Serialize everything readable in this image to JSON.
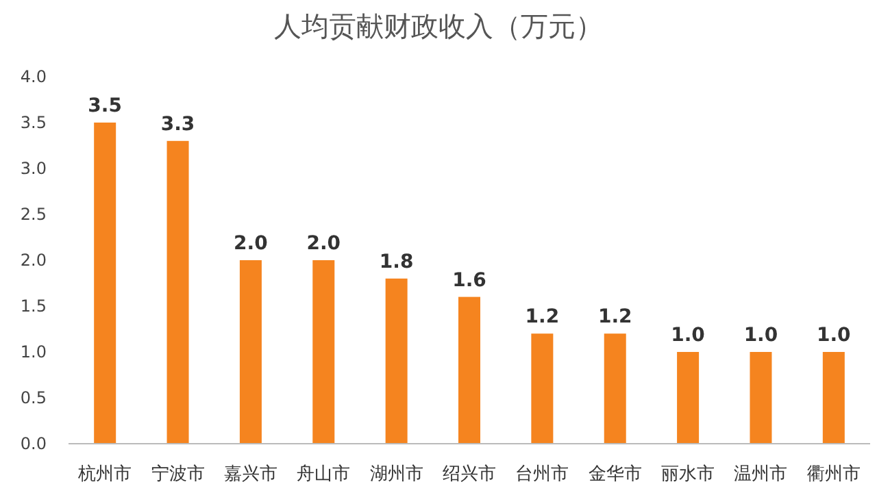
{
  "chart_data": {
    "type": "bar",
    "title": "人均贡献财政收入（万元）",
    "categories": [
      "杭州市",
      "宁波市",
      "嘉兴市",
      "舟山市",
      "湖州市",
      "绍兴市",
      "台州市",
      "金华市",
      "丽水市",
      "温州市",
      "衢州市"
    ],
    "values": [
      3.5,
      3.3,
      2.0,
      2.0,
      1.8,
      1.6,
      1.2,
      1.2,
      1.0,
      1.0,
      1.0
    ],
    "color": "#f5841f",
    "ylim": [
      0,
      4
    ],
    "yticks": [
      {
        "value": 0,
        "label": "0.0"
      },
      {
        "value": 0.5,
        "label": "0.5"
      },
      {
        "value": 1,
        "label": "1.0"
      },
      {
        "value": 1.5,
        "label": "1.5"
      },
      {
        "value": 2,
        "label": "2.0"
      },
      {
        "value": 2.5,
        "label": "2.5"
      },
      {
        "value": 3,
        "label": "3.0"
      },
      {
        "value": 3.5,
        "label": "3.5"
      },
      {
        "value": 4,
        "label": "4.0"
      }
    ],
    "value_labels": [
      "3.5",
      "3.3",
      "2.0",
      "2.0",
      "1.8",
      "1.6",
      "1.2",
      "1.2",
      "1.0",
      "1.0",
      "1.0"
    ]
  }
}
